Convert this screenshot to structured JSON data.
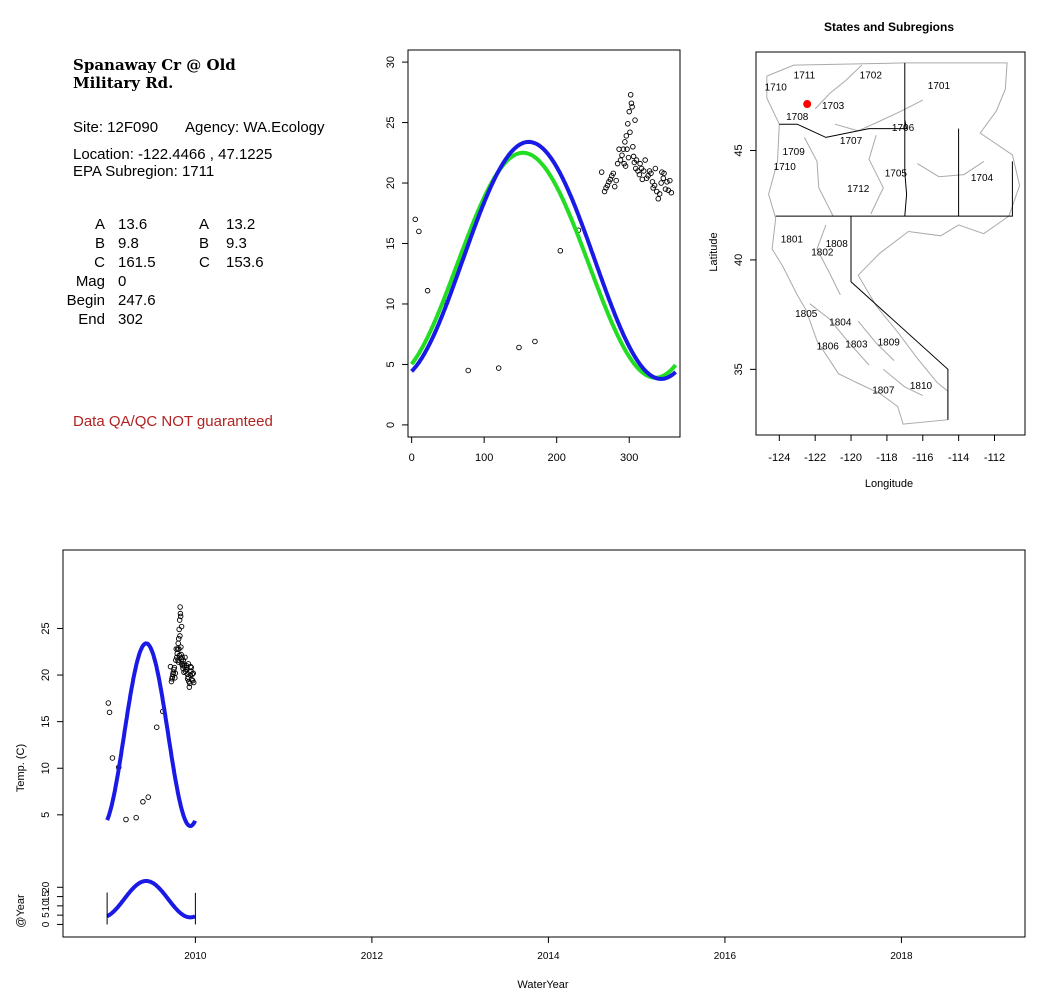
{
  "station": {
    "name_line1": "Spanaway Cr @ Old",
    "name_line2": "Military Rd.",
    "site_label": "Site: 12F090",
    "agency_label": "Agency: WA.Ecology",
    "location_label": "Location: -122.4466 , 47.1225",
    "subregion_label": "EPA Subregion: 1711"
  },
  "params": {
    "rows": [
      {
        "label": "A",
        "v1": "13.6",
        "label2": "A",
        "v2": "13.2"
      },
      {
        "label": "B",
        "v1": "9.8",
        "label2": "B",
        "v2": "9.3"
      },
      {
        "label": "C",
        "v1": "161.5",
        "label2": "C",
        "v2": "153.6"
      },
      {
        "label": "Mag",
        "v1": "0",
        "label2": "",
        "v2": ""
      },
      {
        "label": "Begin",
        "v1": "247.6",
        "label2": "",
        "v2": ""
      },
      {
        "label": "End",
        "v1": "302",
        "label2": "",
        "v2": ""
      }
    ]
  },
  "qa_note": "Data QA/QC NOT guaranteed",
  "colors": {
    "fit_blue": "#1a1ae6",
    "fit_green": "#22dd22",
    "qa_text": "#b22222",
    "site_marker": "#ff0000"
  },
  "chart_data": [
    {
      "id": "seasonal",
      "type": "scatter",
      "xlim": [
        -5,
        370
      ],
      "ylim": [
        -1,
        31
      ],
      "xticks": [
        0,
        100,
        200,
        300
      ],
      "yticks": [
        0,
        5,
        10,
        15,
        20,
        25,
        30
      ],
      "points": [
        [
          5,
          17
        ],
        [
          10,
          16
        ],
        [
          22,
          11.1
        ],
        [
          48,
          10.1
        ],
        [
          78,
          4.5
        ],
        [
          120,
          4.7
        ],
        [
          148,
          6.4
        ],
        [
          170,
          6.9
        ],
        [
          205,
          14.4
        ],
        [
          230,
          16.1
        ],
        [
          262,
          20.9
        ],
        [
          266,
          19.3
        ],
        [
          268,
          19.6
        ],
        [
          270,
          19.8
        ],
        [
          272,
          20.1
        ],
        [
          274,
          20.3
        ],
        [
          276,
          20.6
        ],
        [
          278,
          20.8
        ],
        [
          280,
          19.7
        ],
        [
          282,
          20.2
        ],
        [
          284,
          21.6
        ],
        [
          286,
          22.8
        ],
        [
          288,
          21.9
        ],
        [
          290,
          22.3
        ],
        [
          292,
          22.8
        ],
        [
          293,
          21.6
        ],
        [
          294,
          23.4
        ],
        [
          295,
          21.4
        ],
        [
          296,
          23.9
        ],
        [
          297,
          22.8
        ],
        [
          298,
          24.9
        ],
        [
          299,
          22.1
        ],
        [
          300,
          25.9
        ],
        [
          301,
          24.2
        ],
        [
          302,
          27.3
        ],
        [
          303,
          26.6
        ],
        [
          304,
          26.3
        ],
        [
          305,
          23.0
        ],
        [
          306,
          22.2
        ],
        [
          307,
          21.7
        ],
        [
          308,
          25.2
        ],
        [
          309,
          21.2
        ],
        [
          310,
          21.9
        ],
        [
          312,
          21.0
        ],
        [
          314,
          20.7
        ],
        [
          315,
          21.6
        ],
        [
          317,
          21.2
        ],
        [
          318,
          20.3
        ],
        [
          320,
          21.0
        ],
        [
          322,
          21.9
        ],
        [
          324,
          20.4
        ],
        [
          326,
          20.6
        ],
        [
          328,
          21.0
        ],
        [
          330,
          20.8
        ],
        [
          332,
          20.1
        ],
        [
          333,
          19.6
        ],
        [
          335,
          19.8
        ],
        [
          336,
          21.2
        ],
        [
          338,
          19.3
        ],
        [
          340,
          18.7
        ],
        [
          342,
          19.1
        ],
        [
          344,
          20.0
        ],
        [
          345,
          20.9
        ],
        [
          347,
          20.4
        ],
        [
          348,
          20.8
        ],
        [
          350,
          19.5
        ],
        [
          352,
          20.1
        ],
        [
          354,
          19.4
        ],
        [
          356,
          20.2
        ],
        [
          358,
          19.2
        ]
      ],
      "series": [
        {
          "name": "",
          "color": "#22dd22",
          "A": 13.2,
          "B": 9.3,
          "C": 153.6
        },
        {
          "name": "",
          "color": "#1a1ae6",
          "A": 13.6,
          "B": 9.8,
          "C": 161.5
        }
      ]
    },
    {
      "id": "map",
      "type": "map",
      "title": "States and Subregions",
      "xlabel": "Longitude",
      "ylabel": "Latitude",
      "xlim": [
        -125.3,
        -110.3
      ],
      "ylim": [
        32.0,
        49.5
      ],
      "xticks": [
        -124,
        -122,
        -120,
        -118,
        -116,
        -114,
        -112
      ],
      "yticks": [
        35,
        40,
        45
      ],
      "site": [
        -122.4466,
        47.1225
      ],
      "regions": [
        {
          "label": "1711",
          "lon": -122.6,
          "lat": 48.3
        },
        {
          "label": "1702",
          "lon": -118.9,
          "lat": 48.3
        },
        {
          "label": "1701",
          "lon": -115.1,
          "lat": 47.8
        },
        {
          "label": "1710",
          "lon": -124.2,
          "lat": 47.75
        },
        {
          "label": "1703",
          "lon": -121.0,
          "lat": 46.9
        },
        {
          "label": "1708",
          "lon": -123.0,
          "lat": 46.4
        },
        {
          "label": "1706",
          "lon": -117.1,
          "lat": 45.9
        },
        {
          "label": "1707",
          "lon": -120.0,
          "lat": 45.3
        },
        {
          "label": "1709",
          "lon": -123.2,
          "lat": 44.8
        },
        {
          "label": "1710",
          "lon": -123.7,
          "lat": 44.1
        },
        {
          "label": "1705",
          "lon": -117.5,
          "lat": 43.8
        },
        {
          "label": "1704",
          "lon": -112.7,
          "lat": 43.6
        },
        {
          "label": "1712",
          "lon": -119.6,
          "lat": 43.1
        },
        {
          "label": "1801",
          "lon": -123.3,
          "lat": 40.8
        },
        {
          "label": "1808",
          "lon": -120.8,
          "lat": 40.6
        },
        {
          "label": "1802",
          "lon": -121.6,
          "lat": 40.2
        },
        {
          "label": "1805",
          "lon": -122.5,
          "lat": 37.4
        },
        {
          "label": "1804",
          "lon": -120.6,
          "lat": 37.0
        },
        {
          "label": "1806",
          "lon": -121.3,
          "lat": 35.9
        },
        {
          "label": "1803",
          "lon": -119.7,
          "lat": 36.0
        },
        {
          "label": "1809",
          "lon": -117.9,
          "lat": 36.1
        },
        {
          "label": "1807",
          "lon": -118.2,
          "lat": 33.9
        },
        {
          "label": "1810",
          "lon": -116.1,
          "lat": 34.1
        }
      ]
    },
    {
      "id": "timeseries",
      "type": "line",
      "xlabel": "WaterYear",
      "ylabel": "Temp. (C)",
      "ylabel2": "@Year",
      "xlim": [
        2008.5,
        2019.4
      ],
      "xticks": [
        2010,
        2012,
        2014,
        2016,
        2018
      ],
      "temp_ylim": [
        2.3,
        30.2
      ],
      "temp_yticks": [
        5,
        10,
        15,
        20,
        25
      ],
      "year_ylim": [
        -3,
        32
      ],
      "year_yticks": [
        0,
        5,
        10,
        15,
        20
      ],
      "curve": {
        "start": 2009.0,
        "end": 2010.0,
        "A": 13.6,
        "B": 9.8,
        "C": 161.5,
        "begin": 247.6,
        "end_day": 302
      }
    }
  ]
}
